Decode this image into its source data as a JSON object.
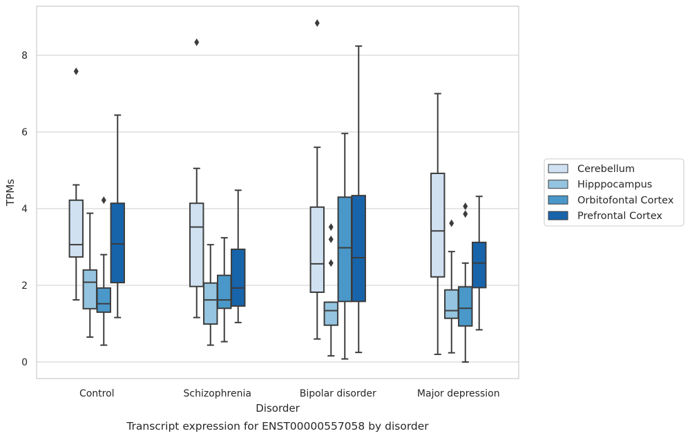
{
  "chart_data": {
    "type": "box",
    "title": "",
    "caption": "Transcript expression for ENST00000557058 by disorder",
    "xlabel": "Disorder",
    "ylabel": "TPMs",
    "ylim": [
      -0.4,
      9.3
    ],
    "yticks": [
      0,
      2,
      4,
      6,
      8
    ],
    "grid": "horizontal",
    "legend_position": "right",
    "categories": [
      "Control",
      "Schizophrenia",
      "Bipolar disorder",
      "Major depression"
    ],
    "series": [
      {
        "name": "Cerebellum",
        "color": "#d0e1f2",
        "boxes": [
          {
            "whisker_low": 1.62,
            "q1": 2.74,
            "median": 3.06,
            "q3": 4.22,
            "whisker_high": 4.62,
            "outliers": [
              7.58
            ]
          },
          {
            "whisker_low": 1.16,
            "q1": 1.97,
            "median": 3.52,
            "q3": 4.14,
            "whisker_high": 5.05,
            "outliers": [
              8.34
            ]
          },
          {
            "whisker_low": 0.6,
            "q1": 1.82,
            "median": 2.56,
            "q3": 4.04,
            "whisker_high": 5.6,
            "outliers": [
              8.84
            ]
          },
          {
            "whisker_low": 0.2,
            "q1": 2.22,
            "median": 3.42,
            "q3": 4.92,
            "whisker_high": 7.0,
            "outliers": []
          }
        ]
      },
      {
        "name": "Hipppocampus",
        "color": "#94c4df",
        "boxes": [
          {
            "whisker_low": 0.65,
            "q1": 1.39,
            "median": 2.08,
            "q3": 2.4,
            "whisker_high": 3.88,
            "outliers": []
          },
          {
            "whisker_low": 0.44,
            "q1": 0.99,
            "median": 1.62,
            "q3": 2.06,
            "whisker_high": 3.06,
            "outliers": []
          },
          {
            "whisker_low": 0.16,
            "q1": 0.96,
            "median": 1.34,
            "q3": 1.56,
            "whisker_high": 1.56,
            "outliers": [
              2.58,
              3.2,
              3.52
            ]
          },
          {
            "whisker_low": 0.24,
            "q1": 1.14,
            "median": 1.34,
            "q3": 1.88,
            "whisker_high": 2.88,
            "outliers": [
              3.62
            ]
          }
        ]
      },
      {
        "name": "Orbitofontal Cortex",
        "color": "#4a98c9",
        "boxes": [
          {
            "whisker_low": 0.44,
            "q1": 1.3,
            "median": 1.52,
            "q3": 1.93,
            "whisker_high": 2.8,
            "outliers": [
              4.22
            ]
          },
          {
            "whisker_low": 0.53,
            "q1": 1.4,
            "median": 1.62,
            "q3": 2.26,
            "whisker_high": 3.24,
            "outliers": []
          },
          {
            "whisker_low": 0.08,
            "q1": 1.58,
            "median": 2.98,
            "q3": 4.3,
            "whisker_high": 5.96,
            "outliers": []
          },
          {
            "whisker_low": 0.0,
            "q1": 0.94,
            "median": 1.4,
            "q3": 1.96,
            "whisker_high": 2.58,
            "outliers": [
              3.86,
              4.06
            ]
          }
        ]
      },
      {
        "name": "Prefrontal Cortex",
        "color": "#1764ab",
        "boxes": [
          {
            "whisker_low": 1.16,
            "q1": 2.07,
            "median": 3.08,
            "q3": 4.14,
            "whisker_high": 6.44,
            "outliers": []
          },
          {
            "whisker_low": 1.03,
            "q1": 1.46,
            "median": 1.93,
            "q3": 2.94,
            "whisker_high": 4.48,
            "outliers": []
          },
          {
            "whisker_low": 0.25,
            "q1": 1.58,
            "median": 2.72,
            "q3": 4.34,
            "whisker_high": 8.24,
            "outliers": []
          },
          {
            "whisker_low": 0.84,
            "q1": 1.94,
            "median": 2.58,
            "q3": 3.12,
            "whisker_high": 4.32,
            "outliers": []
          }
        ]
      }
    ]
  }
}
